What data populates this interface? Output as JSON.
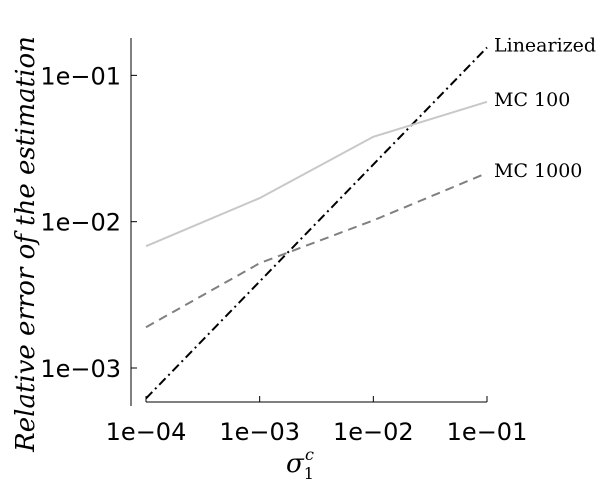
{
  "chart_data": {
    "type": "line",
    "xscale": "log",
    "yscale": "log",
    "xlim": [
      0.0001,
      0.1
    ],
    "ylim": [
      0.00055,
      0.18
    ],
    "xlabel_base": "σ",
    "xlabel_sub": "1",
    "xlabel_sup": "c",
    "ylabel": "Relative error of the estimation",
    "x_ticks": [
      {
        "value": 0.0001,
        "label": "1e−04"
      },
      {
        "value": 0.001,
        "label": "1e−03"
      },
      {
        "value": 0.01,
        "label": "1e−02"
      },
      {
        "value": 0.1,
        "label": "1e−01"
      }
    ],
    "y_ticks": [
      {
        "value": 0.001,
        "label": "1e−03"
      },
      {
        "value": 0.01,
        "label": "1e−02"
      },
      {
        "value": 0.1,
        "label": "1e−01"
      }
    ],
    "grid": false,
    "legend": "inline-right",
    "series": [
      {
        "name": "Linearized",
        "style": "dashdot",
        "color": "#000000",
        "x": [
          0.0001,
          0.1
        ],
        "y": [
          0.00062,
          0.155
        ]
      },
      {
        "name": "MC 100",
        "style": "solid",
        "color": "#c8c8c8",
        "x": [
          0.0001,
          0.001,
          0.01,
          0.1
        ],
        "y": [
          0.0068,
          0.0145,
          0.038,
          0.066
        ]
      },
      {
        "name": "MC 1000",
        "style": "dashed",
        "color": "#808080",
        "x": [
          0.0001,
          0.001,
          0.01,
          0.1
        ],
        "y": [
          0.0019,
          0.0052,
          0.0102,
          0.0215
        ]
      }
    ]
  }
}
